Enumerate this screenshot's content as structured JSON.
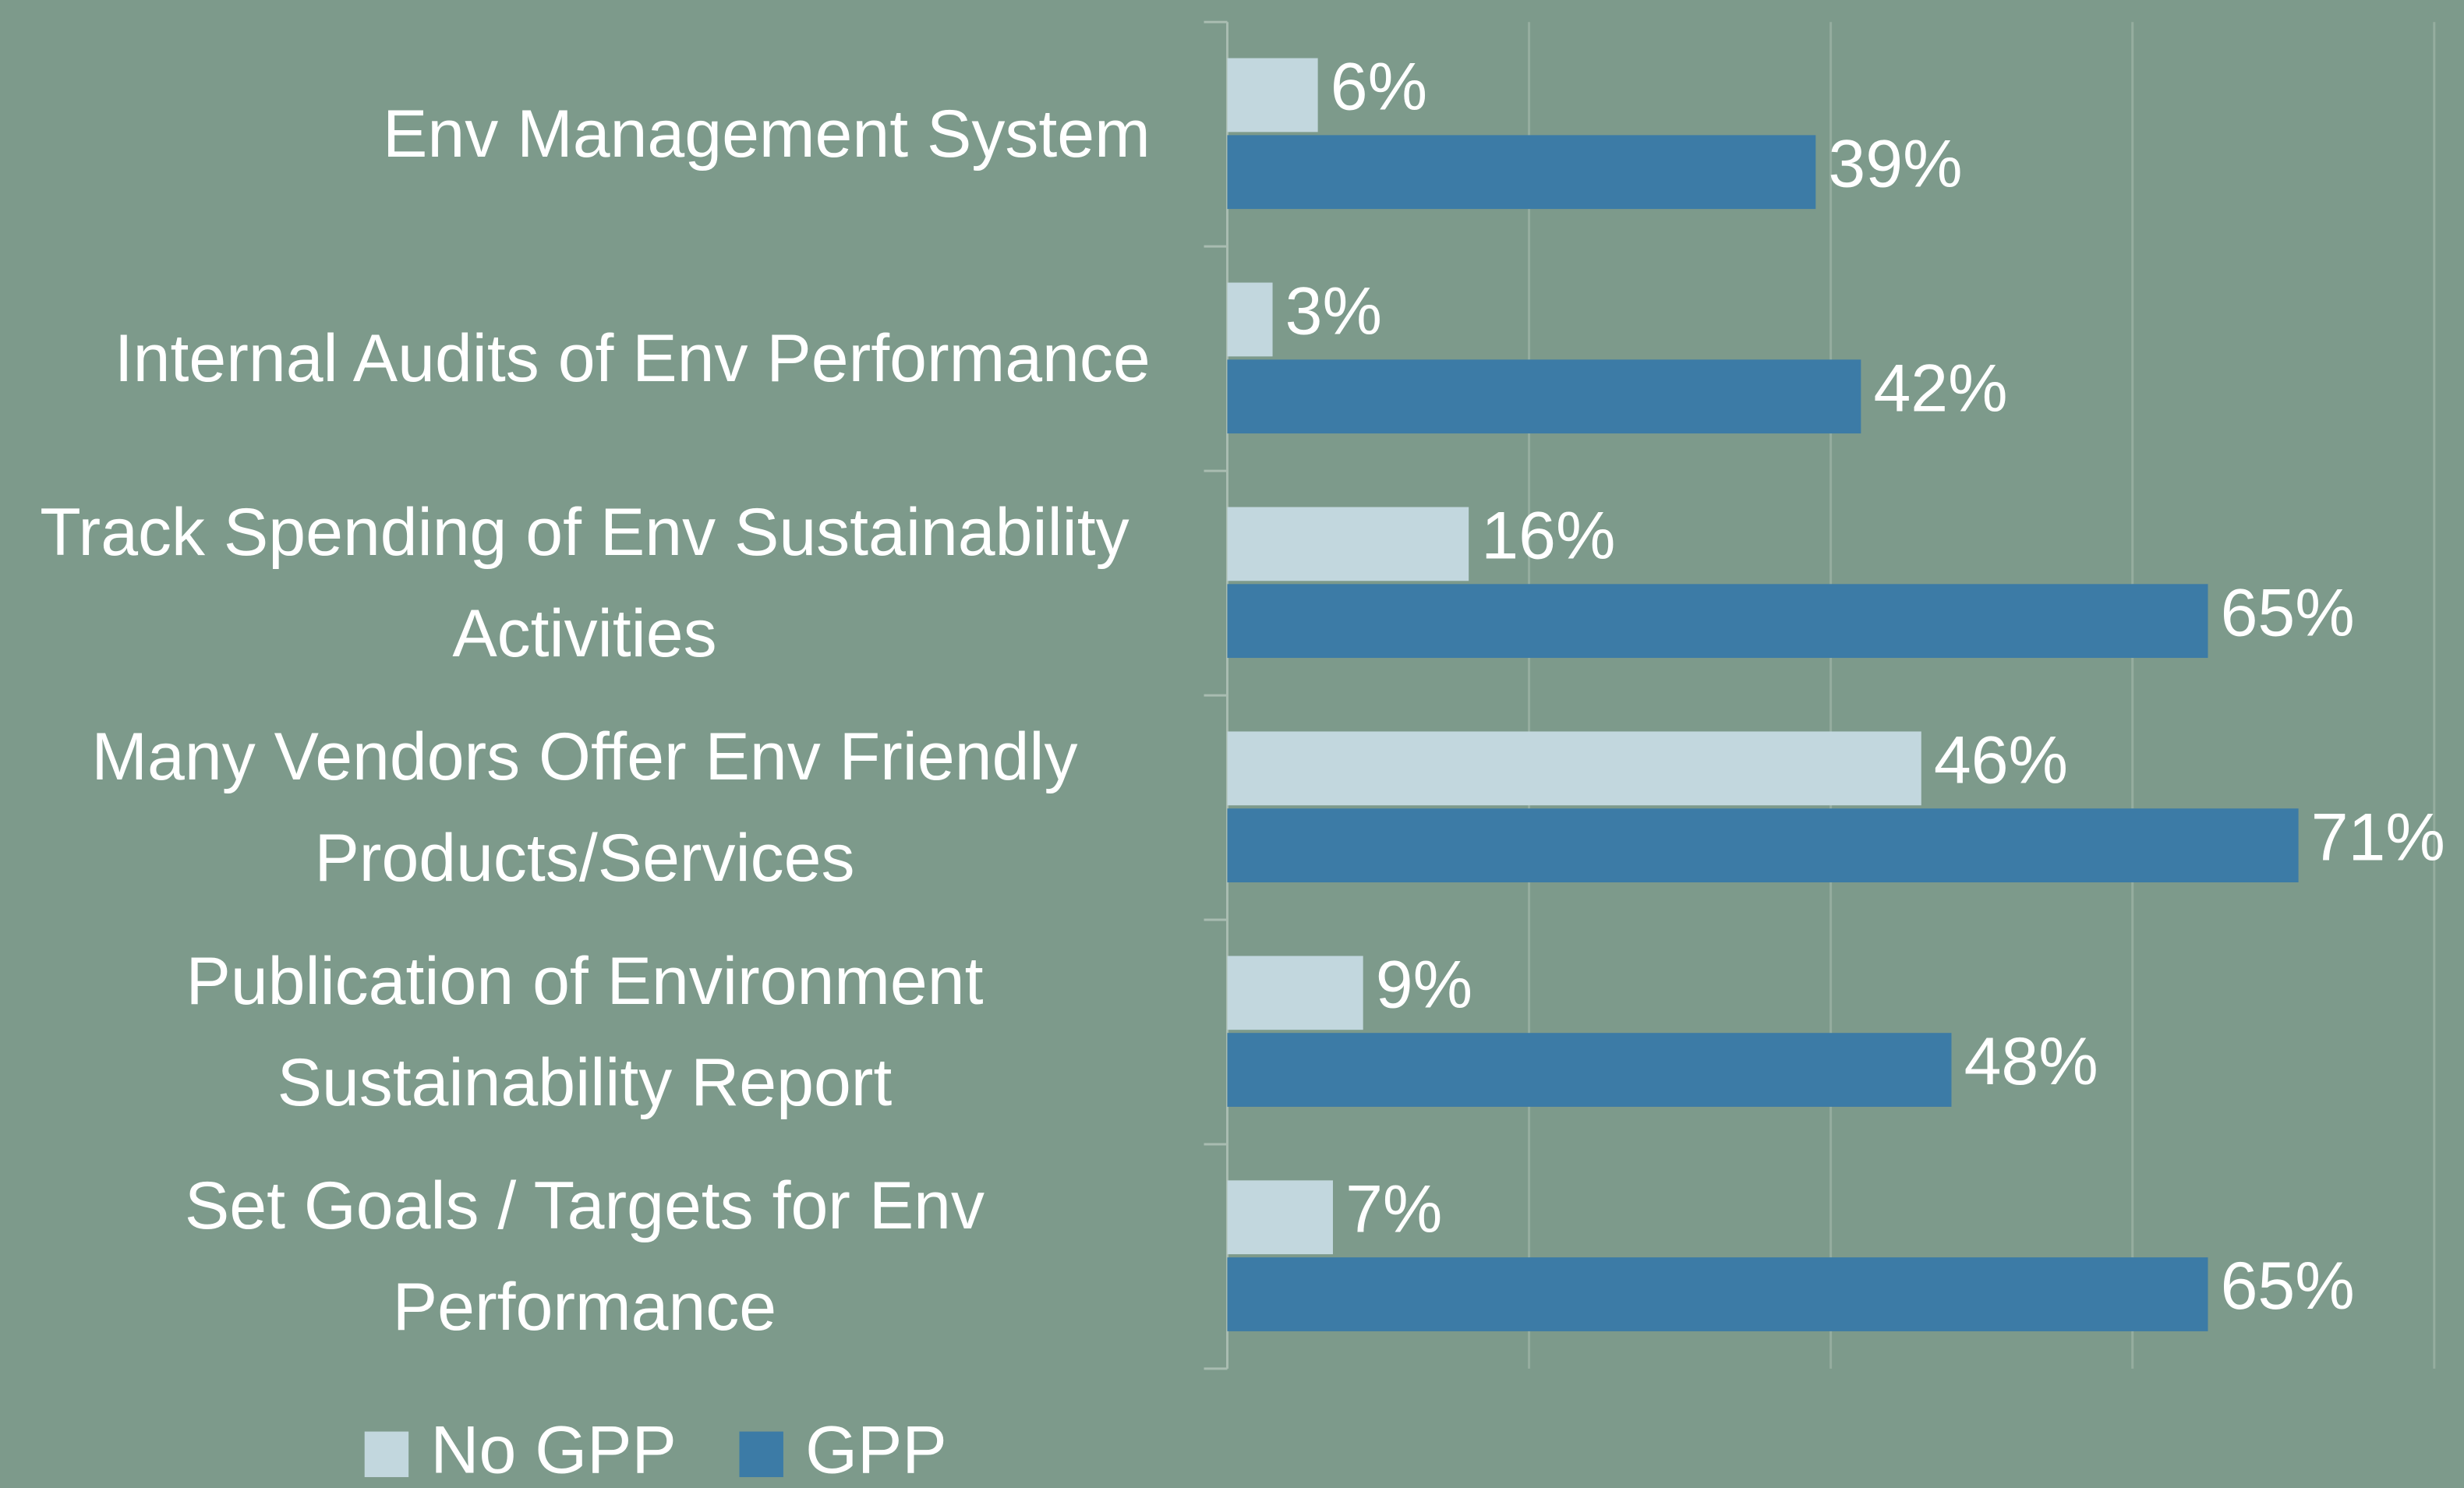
{
  "chart_data": {
    "type": "hbar",
    "categories": [
      "Env Management System",
      "Internal Audits of Env Performance",
      "Track Spending of Env Sustainability Activities",
      "Many Vendors Offer Env Friendly Products/Services",
      "Publication of Environment Sustainability Report",
      "Set Goals / Targets for Env Performance"
    ],
    "series": [
      {
        "name": "No GPP",
        "color": "#c2d7de",
        "values": [
          6,
          3,
          16,
          46,
          9,
          7
        ],
        "value_labels": [
          "6%",
          "3%",
          "16%",
          "46%",
          "9%",
          "7%"
        ]
      },
      {
        "name": "GPP",
        "color": "#3c7ba6",
        "values": [
          39,
          42,
          65,
          71,
          48,
          65
        ],
        "value_labels": [
          "39%",
          "42%",
          "65%",
          "71%",
          "48%",
          "65%"
        ]
      }
    ],
    "xlim": [
      0,
      80
    ],
    "xticks": [
      0,
      20,
      40,
      60,
      80
    ],
    "grid": true,
    "legend": "bottom-left"
  }
}
